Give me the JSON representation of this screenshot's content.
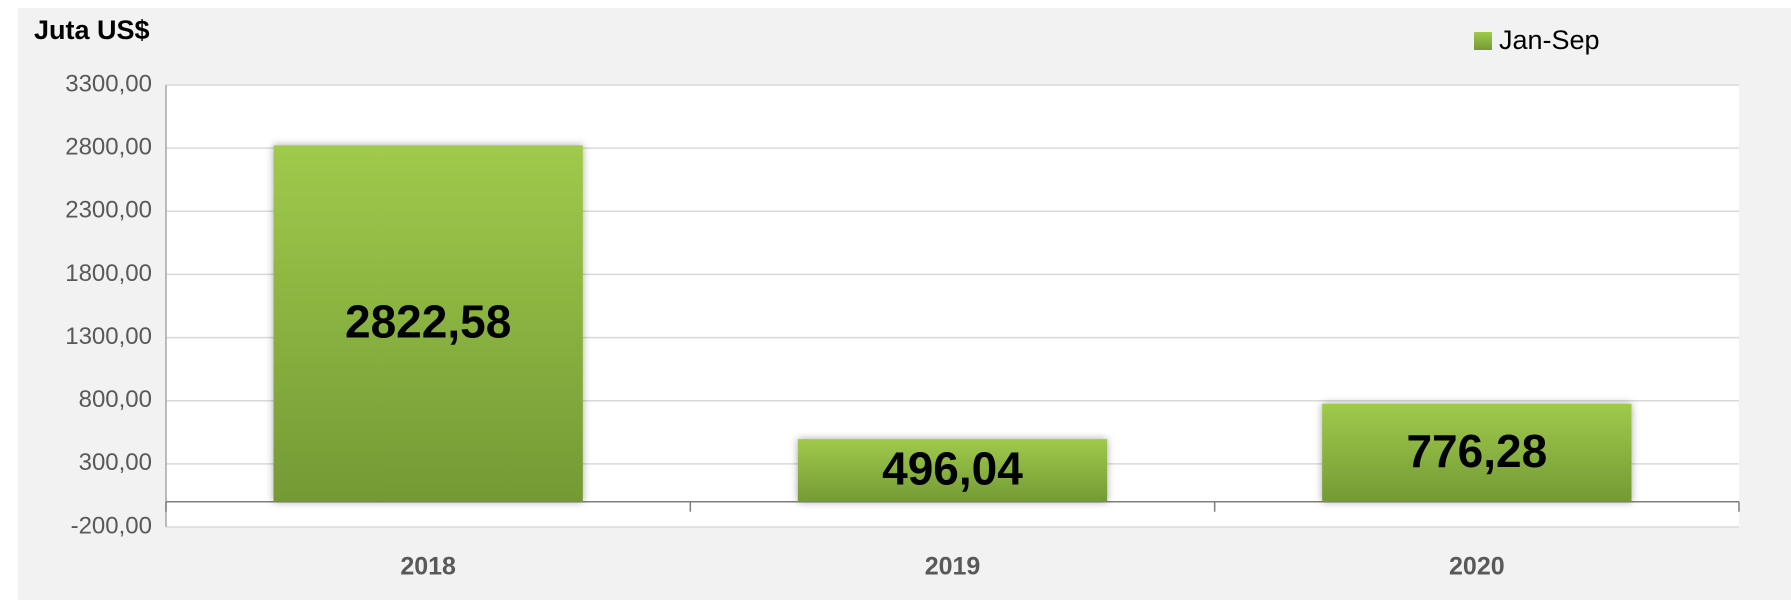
{
  "chart_data": {
    "type": "bar",
    "title": "Juta US$",
    "categories": [
      "2018",
      "2019",
      "2020"
    ],
    "series": [
      {
        "name": "Jan-Sep",
        "color": "#8cb83f",
        "values": [
          2822.58,
          496.04,
          776.28
        ],
        "value_labels": [
          "2822,58",
          "496,04",
          "776,28"
        ]
      }
    ],
    "ylim": [
      -200,
      3300
    ],
    "yticks": [
      {
        "value": -200,
        "label": "-200,00"
      },
      {
        "value": 300,
        "label": "300,00"
      },
      {
        "value": 800,
        "label": "800,00"
      },
      {
        "value": 1300,
        "label": "1300,00"
      },
      {
        "value": 1800,
        "label": "1800,00"
      },
      {
        "value": 2300,
        "label": "2300,00"
      },
      {
        "value": 2800,
        "label": "2800,00"
      },
      {
        "value": 3300,
        "label": "3300,00"
      }
    ],
    "grid": true,
    "legend": "top-right"
  }
}
